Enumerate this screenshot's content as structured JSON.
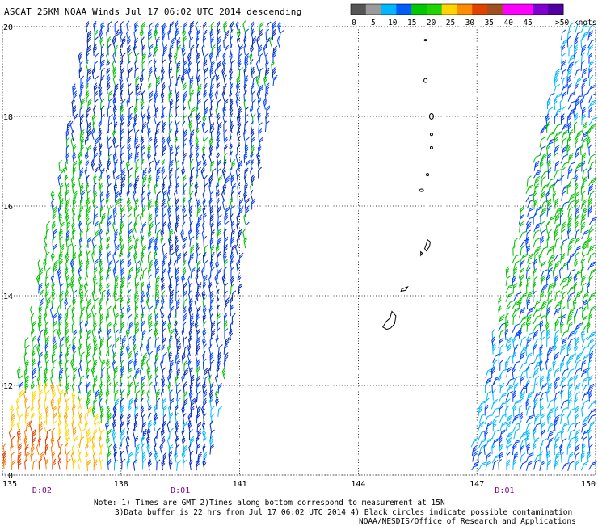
{
  "title": "ASCAT 25KM NOAA Winds  Jul 17 06:02 UTC 2014 descending",
  "legend": {
    "labels": [
      "0",
      "5",
      "10",
      "15",
      "20",
      "25",
      "30",
      "35",
      "40",
      "45",
      ">50 knots"
    ],
    "colors": [
      "#555555",
      "#9a9a9a",
      "#00b7ff",
      "#005cff",
      "#00c800",
      "#1fd400",
      "#ffd400",
      "#ff8c00",
      "#e04000",
      "#a05020",
      "#ff00ff",
      "#ff00ff",
      "#8000d0",
      "#5000a0"
    ]
  },
  "map": {
    "lat_labels": [
      "20",
      "18",
      "16",
      "14",
      "12",
      "10"
    ],
    "lon_labels": [
      "135",
      "138",
      "141",
      "144",
      "147",
      "150"
    ],
    "time_labels": [
      {
        "text": "D:02",
        "lon": 136.0
      },
      {
        "text": "D:01",
        "lon": 139.5
      },
      {
        "text": "D:01",
        "lon": 147.7
      }
    ],
    "grid_lat": [
      10,
      12,
      14,
      16,
      18,
      20
    ],
    "grid_lon": [
      135,
      138,
      141,
      144,
      147,
      150
    ],
    "line_color": "#000000",
    "time_label_color": "#800080"
  },
  "notes": {
    "line1": "Note: 1) Times are GMT 2)Times along bottom correspond to measurement at 15N",
    "line2": "3)Data buffer is 22 hrs from Jul 17 06:02 UTC 2014 4) Black circles indicate possible contamination",
    "credit": "NOAA/NESDIS/Office of Research and Applications"
  }
}
